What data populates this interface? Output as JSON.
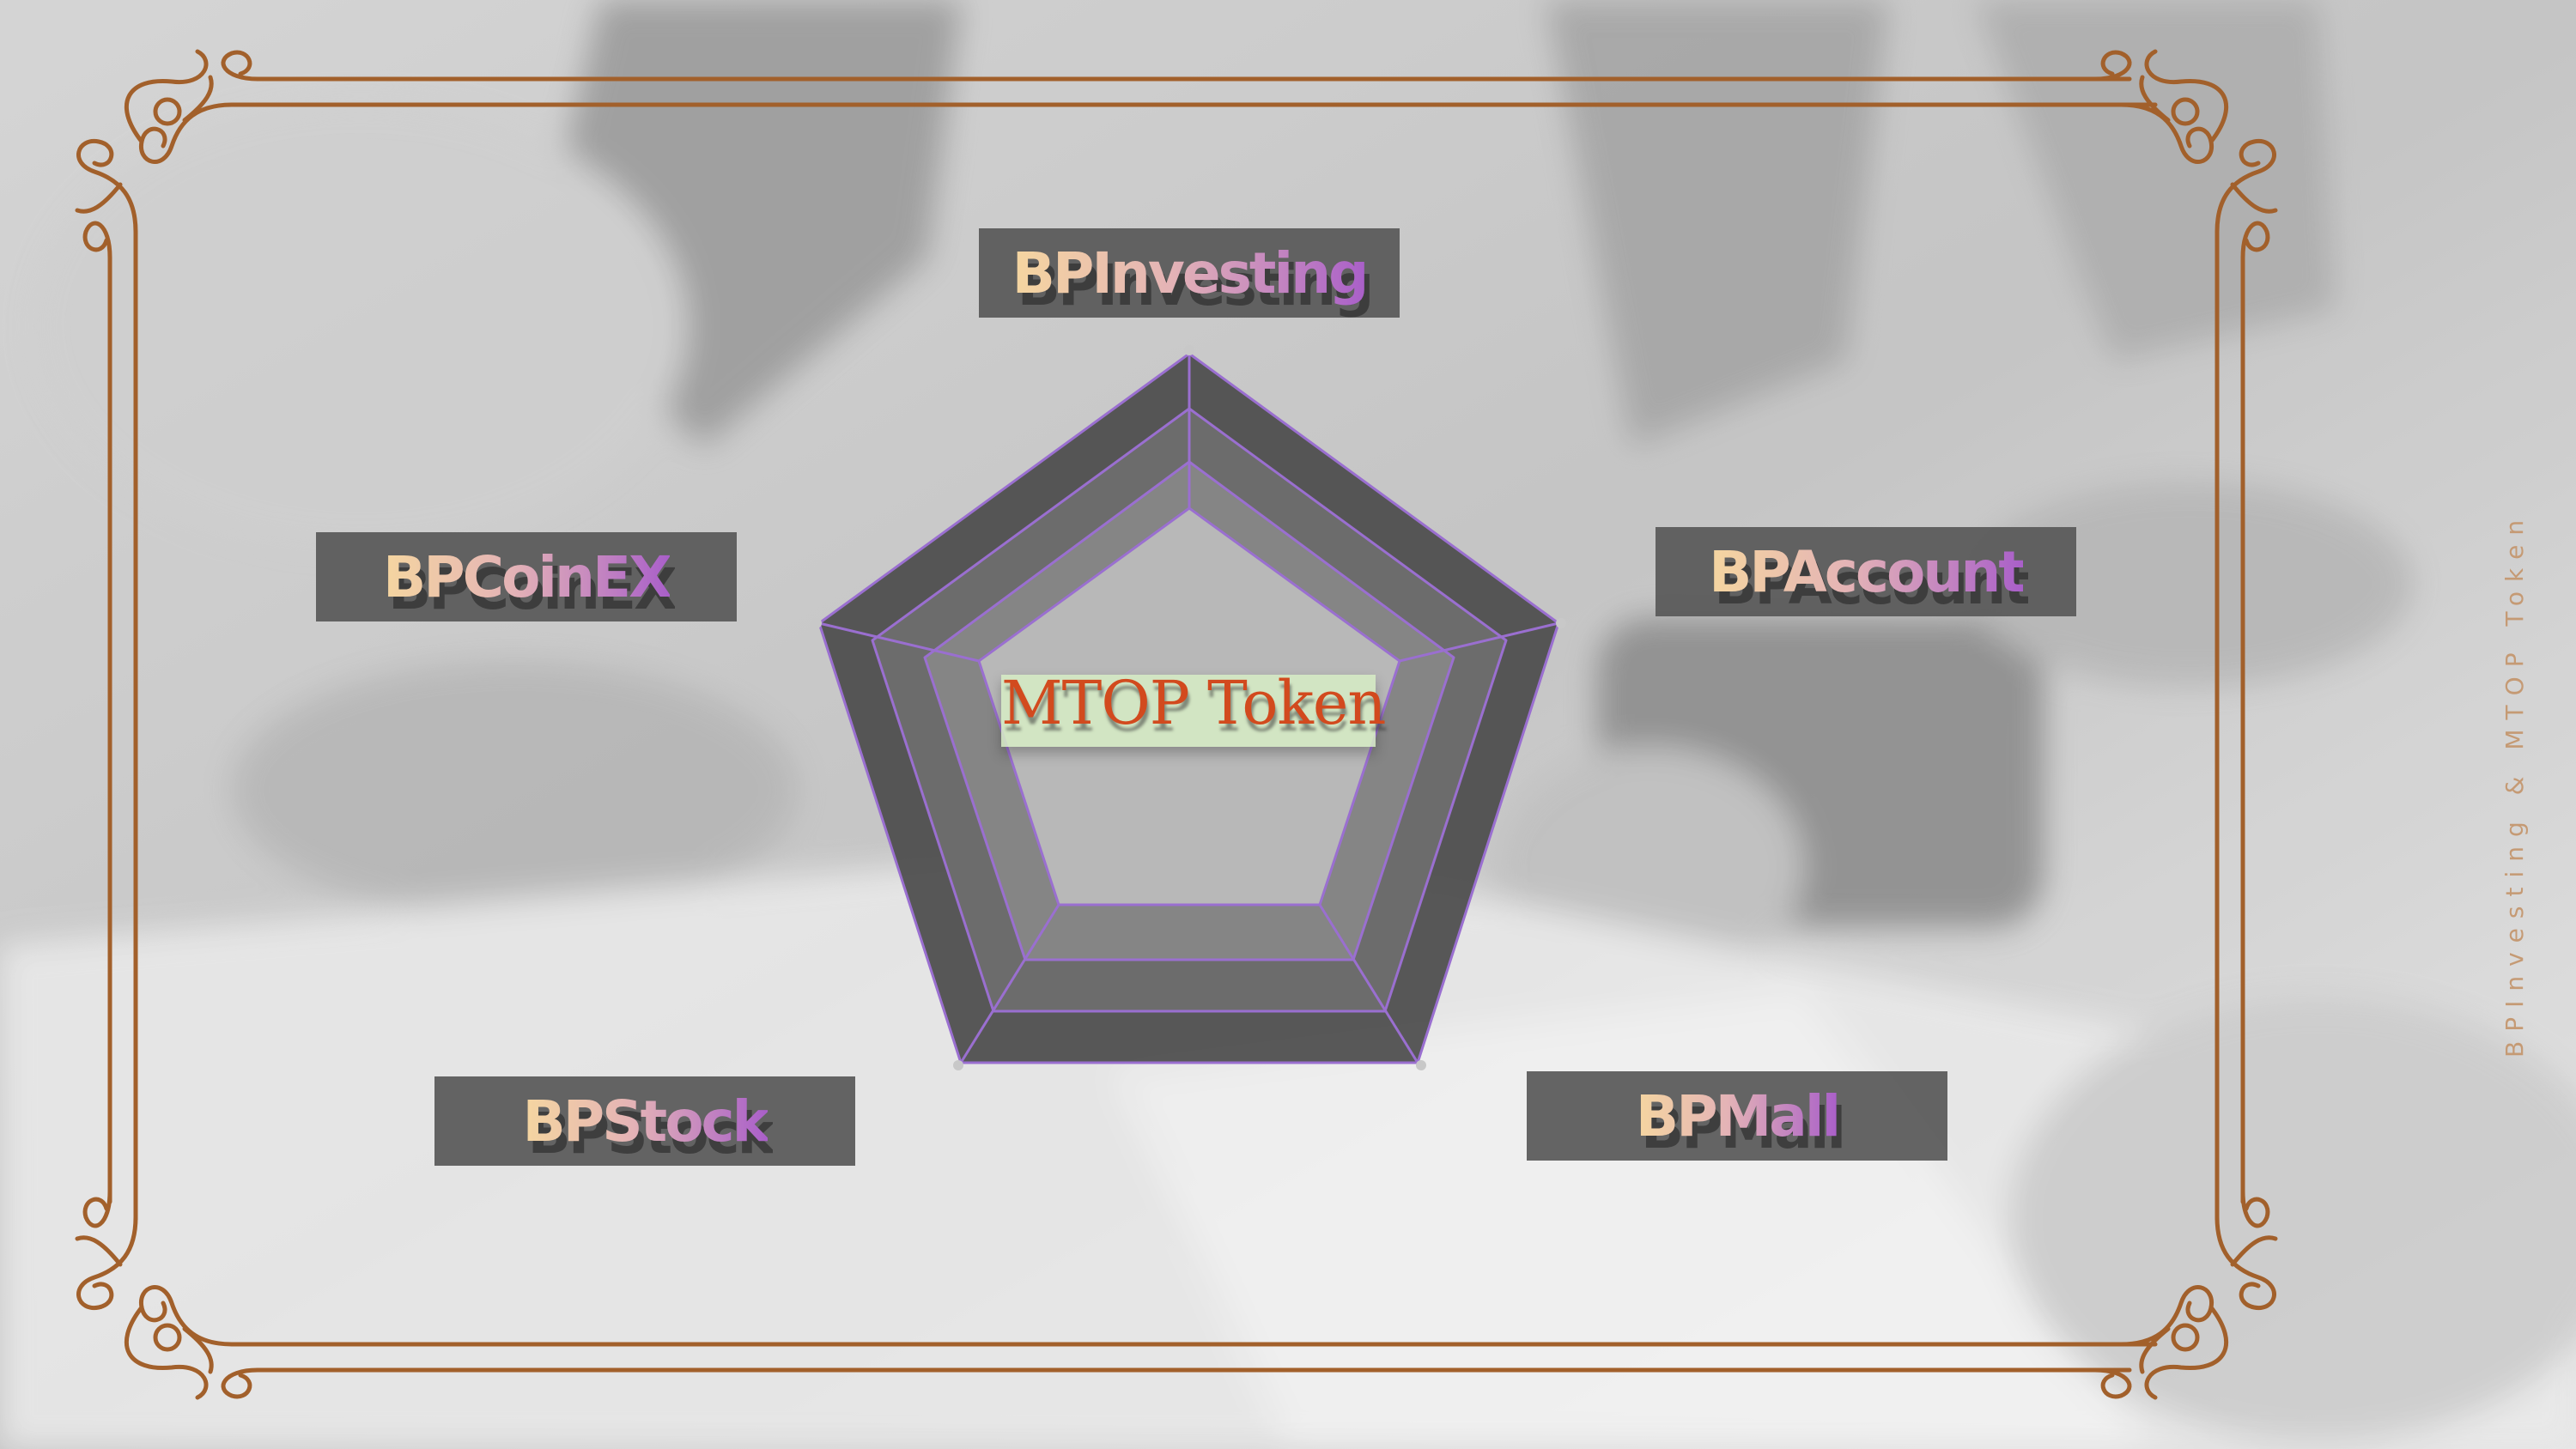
{
  "labels": {
    "top": "BPInvesting",
    "right": "BPAccount",
    "bottom_right": "BPMall",
    "bottom_left": "BPStock",
    "left": "BPCoinEX"
  },
  "center_label": "MTOP Token",
  "side_caption": "BPInvesting & MTOP Token",
  "colors": {
    "frame": "#a2602b",
    "pentagon_outer": "#4b4b4b",
    "pentagon_mid": "#6f6f6f",
    "pentagon_inner": "#8a8a8a",
    "pentagon_stroke": "#9a6fd0",
    "center_text": "#d24a1e",
    "center_highlight": "#d6ecc4",
    "label_box": "#585858"
  },
  "icons": {
    "corner_ornament": "flourish-ornament-icon"
  }
}
